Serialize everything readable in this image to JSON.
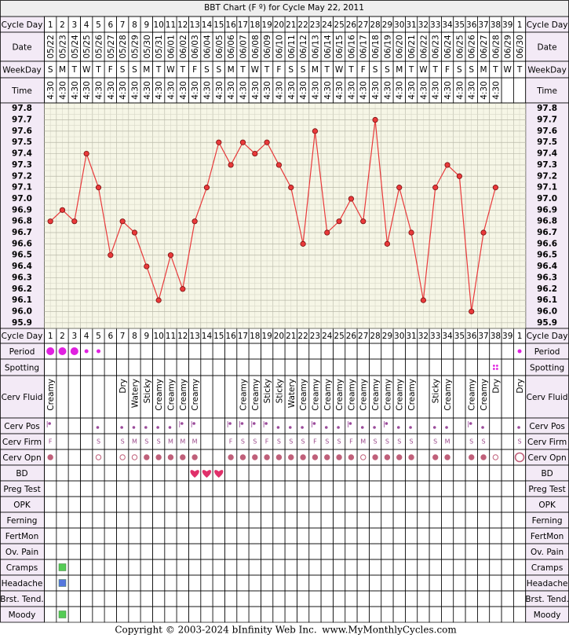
{
  "header": {
    "title": "BBT Chart (F º) for Cycle May 22, 2011"
  },
  "top_labels": [
    "Cycle Day",
    "Date",
    "WeekDay",
    "Time"
  ],
  "lower_labels": [
    "Period",
    "Spotting",
    "Cerv Fluid",
    "Cerv Pos",
    "Cerv Firm",
    "Cerv Opn",
    "BD",
    "Preg Test",
    "OPK",
    "Ferning",
    "FertMon",
    "Ov. Pain",
    "Cramps",
    "Headache",
    "Brst. Tend.",
    "Moody"
  ],
  "cycle_days": [
    1,
    2,
    3,
    4,
    5,
    6,
    7,
    8,
    9,
    10,
    11,
    12,
    13,
    14,
    15,
    16,
    17,
    18,
    19,
    20,
    21,
    22,
    23,
    24,
    25,
    26,
    27,
    28,
    29,
    30,
    31,
    32,
    33,
    34,
    35,
    36,
    37,
    38,
    39,
    1
  ],
  "weekdays": [
    "S",
    "M",
    "T",
    "W",
    "T",
    "F",
    "S",
    "S",
    "M",
    "T",
    "W",
    "T",
    "F",
    "S",
    "S",
    "M",
    "T",
    "W",
    "T",
    "F",
    "S",
    "S",
    "M",
    "T",
    "W",
    "T",
    "F",
    "S",
    "S",
    "M",
    "T",
    "W",
    "T",
    "F",
    "S",
    "S",
    "M",
    "T",
    "W",
    "T"
  ],
  "times": [
    "4:30",
    "4:30",
    "4:30",
    "4:30",
    "4:30",
    "4:30",
    "4:30",
    "4:30",
    "4:30",
    "4:30",
    "4:30",
    "4:30",
    "4:30",
    "4:30",
    "4:30",
    "4:30",
    "4:30",
    "4:30",
    "4:30",
    "4:30",
    "4:30",
    "4:30",
    "4:30",
    "4:30",
    "4:30",
    "4:30",
    "4:30",
    "4:30",
    "4:30",
    "4:30",
    "4:30",
    "4:30",
    "4:30",
    "4:30",
    "4:30",
    "4:30",
    "4:30",
    "4:30",
    null,
    null
  ],
  "chart_data": {
    "type": "line",
    "categories": [
      "05/22",
      "05/23",
      "05/24",
      "05/25",
      "05/26",
      "05/27",
      "05/28",
      "05/29",
      "05/30",
      "05/31",
      "06/01",
      "06/02",
      "06/03",
      "06/04",
      "06/05",
      "06/06",
      "06/07",
      "06/08",
      "06/09",
      "06/10",
      "06/11",
      "06/12",
      "06/13",
      "06/14",
      "06/15",
      "06/16",
      "06/17",
      "06/18",
      "06/19",
      "06/20",
      "06/21",
      "06/22",
      "06/23",
      "06/24",
      "06/25",
      "06/26",
      "06/27",
      "06/28",
      "06/29",
      "06/30"
    ],
    "values": [
      96.8,
      96.9,
      96.8,
      97.4,
      97.1,
      96.5,
      96.8,
      96.7,
      96.4,
      96.1,
      96.5,
      96.2,
      96.8,
      97.1,
      97.5,
      97.3,
      97.5,
      97.4,
      97.5,
      97.3,
      97.1,
      96.6,
      97.6,
      96.7,
      96.8,
      97.0,
      96.8,
      97.7,
      96.6,
      97.1,
      96.7,
      96.1,
      97.1,
      97.3,
      97.2,
      96.0,
      96.7,
      97.1,
      null,
      null
    ],
    "color": "#e8393a",
    "ylim": [
      95.85,
      97.85
    ],
    "yticks": [
      95.9,
      {
        "value": 96,
        "label": "96.0"
      },
      96.1,
      96.2,
      96.3,
      96.4,
      96.5,
      96.6,
      96.7,
      96.8,
      96.9,
      {
        "value": 97,
        "label": "97.0"
      },
      97.1,
      97.2,
      97.3,
      97.4,
      97.5,
      97.6,
      97.7,
      97.8
    ],
    "grid": true
  },
  "cerv_fluid": [
    "Creamy",
    null,
    null,
    null,
    null,
    null,
    "Dry",
    "Watery",
    "Sticky",
    "Creamy",
    "Creamy",
    "Creamy",
    "Creamy",
    null,
    null,
    null,
    "Creamy",
    "Creamy",
    "Sticky",
    "Sticky",
    "Watery",
    "Creamy",
    "Creamy",
    "Creamy",
    "Creamy",
    "Creamy",
    "Creamy",
    "Creamy",
    "Creamy",
    "Creamy",
    "Creamy",
    null,
    "Sticky",
    "Creamy",
    null,
    "Creamy",
    "Creamy",
    "Dry",
    null,
    "Dry"
  ],
  "cerv_firm": [
    "F",
    null,
    null,
    null,
    "S",
    null,
    "S",
    "M",
    "S",
    "S",
    "M",
    "M",
    "M",
    null,
    null,
    "F",
    "S",
    "S",
    "F",
    "S",
    "S",
    "S",
    "F",
    "S",
    "S",
    "F",
    "M",
    "S",
    "S",
    "S",
    "S",
    null,
    "S",
    "M",
    null,
    "S",
    "S",
    null,
    null,
    "S"
  ],
  "footer": {
    "copyright": "Copyright © 2003-2024 bInfinity Web Inc.",
    "site": "www.MyMonthlyCycles.com"
  }
}
